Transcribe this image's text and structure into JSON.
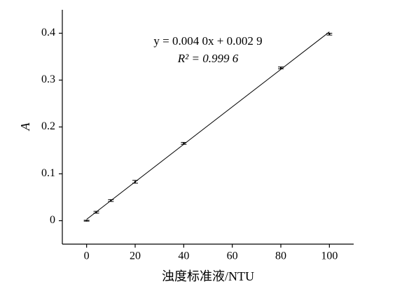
{
  "chart_data": {
    "type": "scatter",
    "x_label": "浊度标准液/NTU",
    "y_label": "A",
    "equation": "y = 0.004 0x + 0.002 9",
    "r_squared": "R² = 0.999 6",
    "fit_line": {
      "slope": 0.004,
      "intercept": 0.0029
    },
    "x": [
      0,
      4,
      10,
      20,
      40,
      80,
      100
    ],
    "values": [
      0.0,
      0.018,
      0.043,
      0.083,
      0.165,
      0.326,
      0.398
    ],
    "errors": [
      0.001,
      0.002,
      0.002,
      0.003,
      0.002,
      0.002,
      0.002
    ],
    "color": "#000000",
    "xlim": [
      -10,
      110
    ],
    "xticks": [
      0,
      20,
      40,
      60,
      80,
      100
    ],
    "ylim": [
      -0.05,
      0.45
    ],
    "yticks": [
      0,
      0.1,
      0.2,
      0.3,
      0.4
    ]
  }
}
